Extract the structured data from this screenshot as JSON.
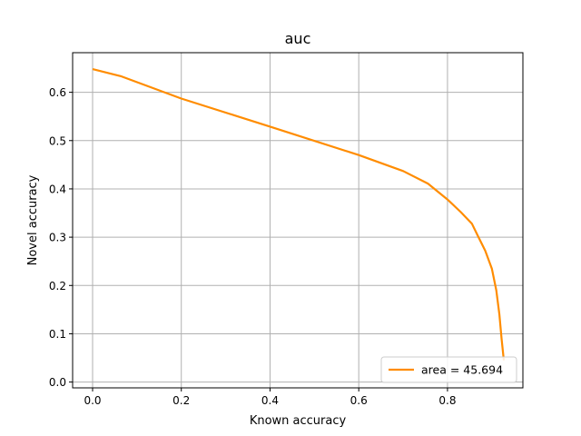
{
  "chart_data": {
    "type": "line",
    "title": "auc",
    "xlabel": "Known accuracy",
    "ylabel": "Novel accuracy",
    "xlim": [
      -0.045,
      0.97
    ],
    "ylim": [
      -0.012,
      0.682
    ],
    "xticks": [
      0.0,
      0.2,
      0.4,
      0.6,
      0.8
    ],
    "xtick_labels": [
      "0.0",
      "0.2",
      "0.4",
      "0.6",
      "0.8"
    ],
    "yticks": [
      0.0,
      0.1,
      0.2,
      0.3,
      0.4,
      0.5,
      0.6
    ],
    "ytick_labels": [
      "0.0",
      "0.1",
      "0.2",
      "0.3",
      "0.4",
      "0.5",
      "0.6"
    ],
    "grid": true,
    "legend_position": "lower-right",
    "series": [
      {
        "name": "area = 45.694",
        "color": "#ff8c00",
        "x": [
          0.0,
          0.065,
          0.2,
          0.4,
          0.6,
          0.7,
          0.756,
          0.8,
          0.83,
          0.855,
          0.87,
          0.885,
          0.9,
          0.91,
          0.917,
          0.922,
          0.927
        ],
        "y": [
          0.648,
          0.633,
          0.587,
          0.529,
          0.47,
          0.437,
          0.411,
          0.378,
          0.352,
          0.328,
          0.3,
          0.272,
          0.235,
          0.19,
          0.14,
          0.09,
          0.045
        ]
      }
    ]
  }
}
